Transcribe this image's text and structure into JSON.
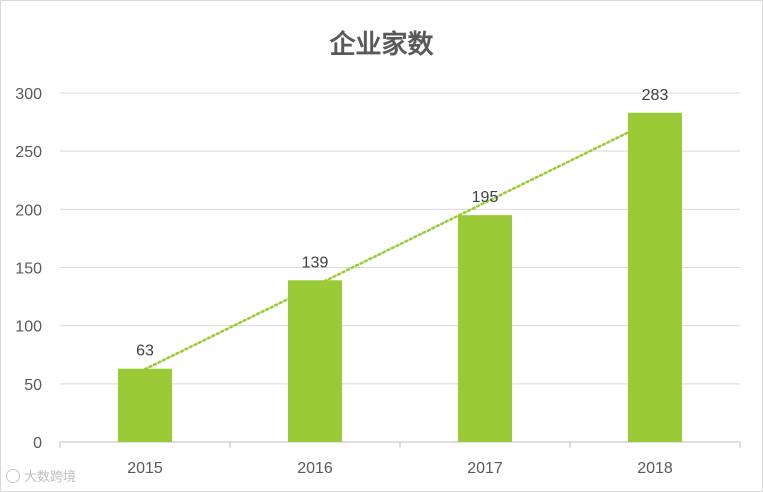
{
  "chart_data": {
    "type": "bar",
    "title": "企业家数",
    "categories": [
      "2015",
      "2016",
      "2017",
      "2018"
    ],
    "values": [
      63,
      139,
      195,
      283
    ],
    "data_labels": [
      "63",
      "139",
      "195",
      "283"
    ],
    "ylim": [
      0,
      300
    ],
    "yticks": [
      "0",
      "50",
      "100",
      "150",
      "200",
      "250",
      "300"
    ],
    "xlabel": "",
    "ylabel": "",
    "grid": true,
    "legend": "none",
    "trendline": {
      "type": "linear",
      "style": "dotted"
    },
    "colors": {
      "bar": "#9ACA35",
      "trendline": "#9ACA35",
      "grid": "#d9d9d9",
      "axis_text": "#595959"
    }
  },
  "watermark": {
    "text": "大数跨境"
  }
}
